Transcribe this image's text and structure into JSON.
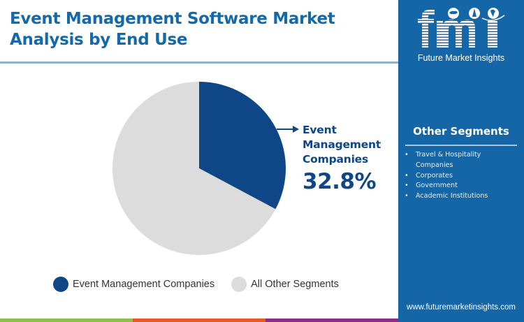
{
  "header": {
    "title": "Event Management Software Market Analysis by End Use"
  },
  "chart_data": {
    "type": "pie",
    "title": "Event Management Software Market Analysis by End Use",
    "categories": [
      "Event Management Companies",
      "All Other Segments"
    ],
    "values": [
      32.8,
      67.2
    ],
    "colors": [
      "#0f4687",
      "#dcdcdc"
    ],
    "start_angle_deg": 0,
    "direction": "clockwise",
    "annotations": [
      {
        "target": "Event Management Companies",
        "label": "Event Management Companies",
        "value": "32.8%"
      }
    ],
    "legend_position": "bottom"
  },
  "callout": {
    "label_line1": "Event",
    "label_line2": "Management",
    "label_line3": "Companies",
    "value": "32.8%"
  },
  "legend": {
    "items": [
      {
        "label": "Event Management Companies",
        "color": "#0f4687"
      },
      {
        "label": "All Other Segments",
        "color": "#dcdcdc"
      }
    ]
  },
  "sidebar": {
    "logo_text": "fmi",
    "logo_tagline": "Future Market Insights",
    "segments_title": "Other Segments",
    "segments": [
      {
        "line1": "Travel & Hospitality",
        "line2": "Companies"
      },
      {
        "line1": "Corporates"
      },
      {
        "line1": "Government"
      },
      {
        "line1": "Academic Institutions"
      }
    ],
    "bullet": "•",
    "website": "www.futuremarketinsights.com",
    "background": "#1466a6"
  },
  "bottom_bar": {
    "colors": [
      "#8cc04b",
      "#e65a25",
      "#8a2f86"
    ]
  }
}
